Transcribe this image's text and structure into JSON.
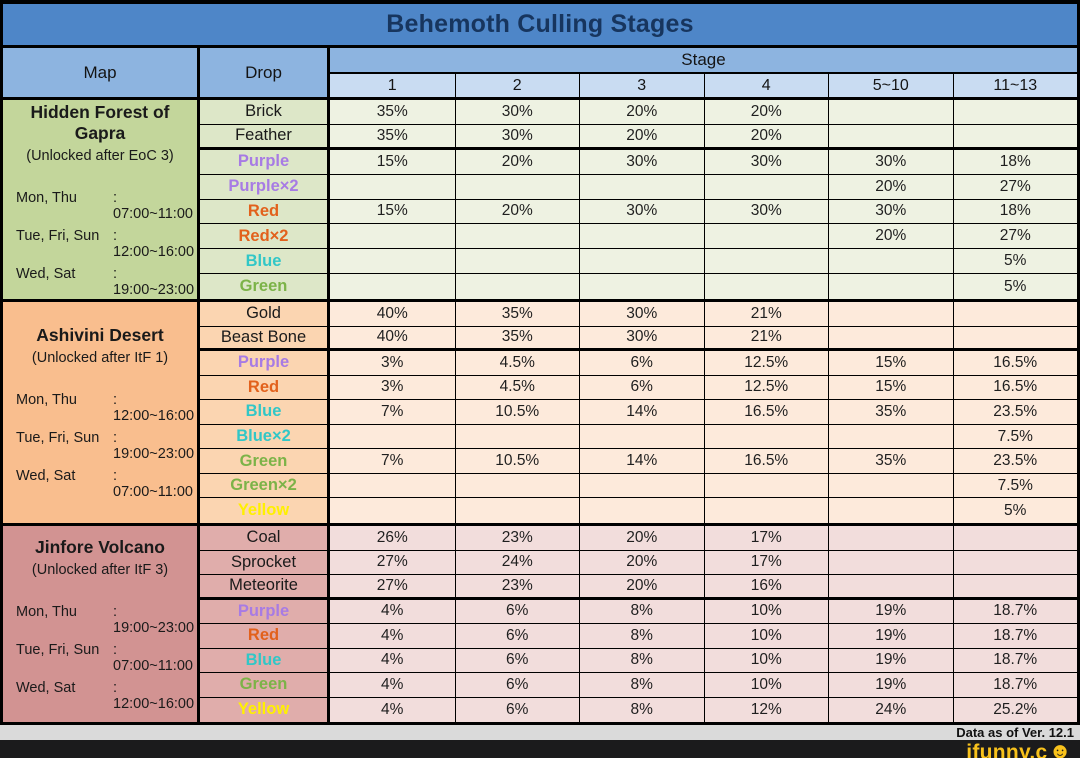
{
  "title": "Behemoth Culling Stages",
  "header": {
    "map": "Map",
    "drop": "Drop",
    "stage": "Stage",
    "stage_columns": [
      "1",
      "2",
      "3",
      "4",
      "5~10",
      "11~13"
    ]
  },
  "drop_colors": {
    "default": "#1A1A1A",
    "purple": "#A77BE4",
    "red": "#E2611C",
    "blue": "#31C7C7",
    "green": "#7CB348",
    "yellow": "#FFF000"
  },
  "sections": [
    {
      "map": {
        "name": "Hidden Forest of Gapra",
        "unlock": "(Unlocked after EoC 3)",
        "schedule": [
          {
            "days": "Mon, Thu",
            "time": ": 07:00~11:00"
          },
          {
            "days": "Tue, Fri, Sun",
            "time": ": 12:00~16:00"
          },
          {
            "days": "Wed, Sat",
            "time": ": 19:00~23:00"
          }
        ]
      },
      "colors": {
        "map_bg": "#C3D69B",
        "drop_bg": "#DDE7C8",
        "cell_bg": "#EEF2E2"
      },
      "rows": [
        {
          "drop": "Brick",
          "color": "default",
          "group_end": false,
          "values": [
            "35%",
            "30%",
            "20%",
            "20%",
            "",
            ""
          ]
        },
        {
          "drop": "Feather",
          "color": "default",
          "group_end": true,
          "values": [
            "35%",
            "30%",
            "20%",
            "20%",
            "",
            ""
          ]
        },
        {
          "drop": "Purple",
          "color": "purple",
          "group_end": false,
          "values": [
            "15%",
            "20%",
            "30%",
            "30%",
            "30%",
            "18%"
          ]
        },
        {
          "drop": "Purple×2",
          "color": "purple",
          "group_end": false,
          "values": [
            "",
            "",
            "",
            "",
            "20%",
            "27%"
          ]
        },
        {
          "drop": "Red",
          "color": "red",
          "group_end": false,
          "values": [
            "15%",
            "20%",
            "30%",
            "30%",
            "30%",
            "18%"
          ]
        },
        {
          "drop": "Red×2",
          "color": "red",
          "group_end": false,
          "values": [
            "",
            "",
            "",
            "",
            "20%",
            "27%"
          ]
        },
        {
          "drop": "Blue",
          "color": "blue",
          "group_end": false,
          "values": [
            "",
            "",
            "",
            "",
            "",
            "5%"
          ]
        },
        {
          "drop": "Green",
          "color": "green",
          "group_end": false,
          "values": [
            "",
            "",
            "",
            "",
            "",
            "5%"
          ]
        }
      ]
    },
    {
      "map": {
        "name": "Ashivini Desert",
        "unlock": "(Unlocked after ItF 1)",
        "schedule": [
          {
            "days": "Mon, Thu",
            "time": ": 12:00~16:00"
          },
          {
            "days": "Tue, Fri, Sun",
            "time": ": 19:00~23:00"
          },
          {
            "days": "Wed, Sat",
            "time": ": 07:00~11:00"
          }
        ]
      },
      "colors": {
        "map_bg": "#F9BE8E",
        "drop_bg": "#FBD5B1",
        "cell_bg": "#FDEADB"
      },
      "rows": [
        {
          "drop": "Gold",
          "color": "default",
          "group_end": false,
          "values": [
            "40%",
            "35%",
            "30%",
            "21%",
            "",
            ""
          ]
        },
        {
          "drop": "Beast Bone",
          "color": "default",
          "group_end": true,
          "values": [
            "40%",
            "35%",
            "30%",
            "21%",
            "",
            ""
          ]
        },
        {
          "drop": "Purple",
          "color": "purple",
          "group_end": false,
          "values": [
            "3%",
            "4.5%",
            "6%",
            "12.5%",
            "15%",
            "16.5%"
          ]
        },
        {
          "drop": "Red",
          "color": "red",
          "group_end": false,
          "values": [
            "3%",
            "4.5%",
            "6%",
            "12.5%",
            "15%",
            "16.5%"
          ]
        },
        {
          "drop": "Blue",
          "color": "blue",
          "group_end": false,
          "values": [
            "7%",
            "10.5%",
            "14%",
            "16.5%",
            "35%",
            "23.5%"
          ]
        },
        {
          "drop": "Blue×2",
          "color": "blue",
          "group_end": false,
          "values": [
            "",
            "",
            "",
            "",
            "",
            "7.5%"
          ]
        },
        {
          "drop": "Green",
          "color": "green",
          "group_end": false,
          "values": [
            "7%",
            "10.5%",
            "14%",
            "16.5%",
            "35%",
            "23.5%"
          ]
        },
        {
          "drop": "Green×2",
          "color": "green",
          "group_end": false,
          "values": [
            "",
            "",
            "",
            "",
            "",
            "7.5%"
          ]
        },
        {
          "drop": "Yellow",
          "color": "yellow",
          "group_end": false,
          "values": [
            "",
            "",
            "",
            "",
            "",
            "5%"
          ]
        }
      ]
    },
    {
      "map": {
        "name": "Jinfore Volcano",
        "unlock": "(Unlocked after ItF 3)",
        "schedule": [
          {
            "days": "Mon, Thu",
            "time": ": 19:00~23:00"
          },
          {
            "days": "Tue, Fri, Sun",
            "time": ": 07:00~11:00"
          },
          {
            "days": "Wed, Sat",
            "time": ": 12:00~16:00"
          }
        ]
      },
      "colors": {
        "map_bg": "#D29392",
        "drop_bg": "#E0ADAB",
        "cell_bg": "#F2DDDC"
      },
      "rows": [
        {
          "drop": "Coal",
          "color": "default",
          "group_end": false,
          "values": [
            "26%",
            "23%",
            "20%",
            "17%",
            "",
            ""
          ]
        },
        {
          "drop": "Sprocket",
          "color": "default",
          "group_end": false,
          "values": [
            "27%",
            "24%",
            "20%",
            "17%",
            "",
            ""
          ]
        },
        {
          "drop": "Meteorite",
          "color": "default",
          "group_end": true,
          "values": [
            "27%",
            "23%",
            "20%",
            "16%",
            "",
            ""
          ]
        },
        {
          "drop": "Purple",
          "color": "purple",
          "group_end": false,
          "values": [
            "4%",
            "6%",
            "8%",
            "10%",
            "19%",
            "18.7%"
          ]
        },
        {
          "drop": "Red",
          "color": "red",
          "group_end": false,
          "values": [
            "4%",
            "6%",
            "8%",
            "10%",
            "19%",
            "18.7%"
          ]
        },
        {
          "drop": "Blue",
          "color": "blue",
          "group_end": false,
          "values": [
            "4%",
            "6%",
            "8%",
            "10%",
            "19%",
            "18.7%"
          ]
        },
        {
          "drop": "Green",
          "color": "green",
          "group_end": false,
          "values": [
            "4%",
            "6%",
            "8%",
            "10%",
            "19%",
            "18.7%"
          ]
        },
        {
          "drop": "Yellow",
          "color": "yellow",
          "group_end": false,
          "values": [
            "4%",
            "6%",
            "8%",
            "12%",
            "24%",
            "25.2%"
          ]
        }
      ]
    }
  ],
  "footer": {
    "note": "Data as of Ver. 12.1"
  },
  "watermark": {
    "text": "ifunny.c",
    "smiley": "☻",
    "color": "#F8C21C",
    "bar_bg": "#1B1B1C"
  },
  "chart_data": {
    "type": "table",
    "title": "Behemoth Culling Stages",
    "columns": [
      "Map",
      "Drop",
      "Stage 1",
      "Stage 2",
      "Stage 3",
      "Stage 4",
      "Stage 5~10",
      "Stage 11~13"
    ],
    "rows": [
      [
        "Hidden Forest of Gapra",
        "Brick",
        "35%",
        "30%",
        "20%",
        "20%",
        "",
        ""
      ],
      [
        "Hidden Forest of Gapra",
        "Feather",
        "35%",
        "30%",
        "20%",
        "20%",
        "",
        ""
      ],
      [
        "Hidden Forest of Gapra",
        "Purple",
        "15%",
        "20%",
        "30%",
        "30%",
        "30%",
        "18%"
      ],
      [
        "Hidden Forest of Gapra",
        "Purple×2",
        "",
        "",
        "",
        "",
        "20%",
        "27%"
      ],
      [
        "Hidden Forest of Gapra",
        "Red",
        "15%",
        "20%",
        "30%",
        "30%",
        "30%",
        "18%"
      ],
      [
        "Hidden Forest of Gapra",
        "Red×2",
        "",
        "",
        "",
        "",
        "20%",
        "27%"
      ],
      [
        "Hidden Forest of Gapra",
        "Blue",
        "",
        "",
        "",
        "",
        "",
        "5%"
      ],
      [
        "Hidden Forest of Gapra",
        "Green",
        "",
        "",
        "",
        "",
        "",
        "5%"
      ],
      [
        "Ashivini Desert",
        "Gold",
        "40%",
        "35%",
        "30%",
        "21%",
        "",
        ""
      ],
      [
        "Ashivini Desert",
        "Beast Bone",
        "40%",
        "35%",
        "30%",
        "21%",
        "",
        ""
      ],
      [
        "Ashivini Desert",
        "Purple",
        "3%",
        "4.5%",
        "6%",
        "12.5%",
        "15%",
        "16.5%"
      ],
      [
        "Ashivini Desert",
        "Red",
        "3%",
        "4.5%",
        "6%",
        "12.5%",
        "15%",
        "16.5%"
      ],
      [
        "Ashivini Desert",
        "Blue",
        "7%",
        "10.5%",
        "14%",
        "16.5%",
        "35%",
        "23.5%"
      ],
      [
        "Ashivini Desert",
        "Blue×2",
        "",
        "",
        "",
        "",
        "",
        "7.5%"
      ],
      [
        "Ashivini Desert",
        "Green",
        "7%",
        "10.5%",
        "14%",
        "16.5%",
        "35%",
        "23.5%"
      ],
      [
        "Ashivini Desert",
        "Green×2",
        "",
        "",
        "",
        "",
        "",
        "7.5%"
      ],
      [
        "Ashivini Desert",
        "Yellow",
        "",
        "",
        "",
        "",
        "",
        "5%"
      ],
      [
        "Jinfore Volcano",
        "Coal",
        "26%",
        "23%",
        "20%",
        "17%",
        "",
        ""
      ],
      [
        "Jinfore Volcano",
        "Sprocket",
        "27%",
        "24%",
        "20%",
        "17%",
        "",
        ""
      ],
      [
        "Jinfore Volcano",
        "Meteorite",
        "27%",
        "23%",
        "20%",
        "16%",
        "",
        ""
      ],
      [
        "Jinfore Volcano",
        "Purple",
        "4%",
        "6%",
        "8%",
        "10%",
        "19%",
        "18.7%"
      ],
      [
        "Jinfore Volcano",
        "Red",
        "4%",
        "6%",
        "8%",
        "10%",
        "19%",
        "18.7%"
      ],
      [
        "Jinfore Volcano",
        "Blue",
        "4%",
        "6%",
        "8%",
        "10%",
        "19%",
        "18.7%"
      ],
      [
        "Jinfore Volcano",
        "Green",
        "4%",
        "6%",
        "8%",
        "10%",
        "19%",
        "18.7%"
      ],
      [
        "Jinfore Volcano",
        "Yellow",
        "4%",
        "6%",
        "8%",
        "12%",
        "24%",
        "25.2%"
      ]
    ]
  }
}
